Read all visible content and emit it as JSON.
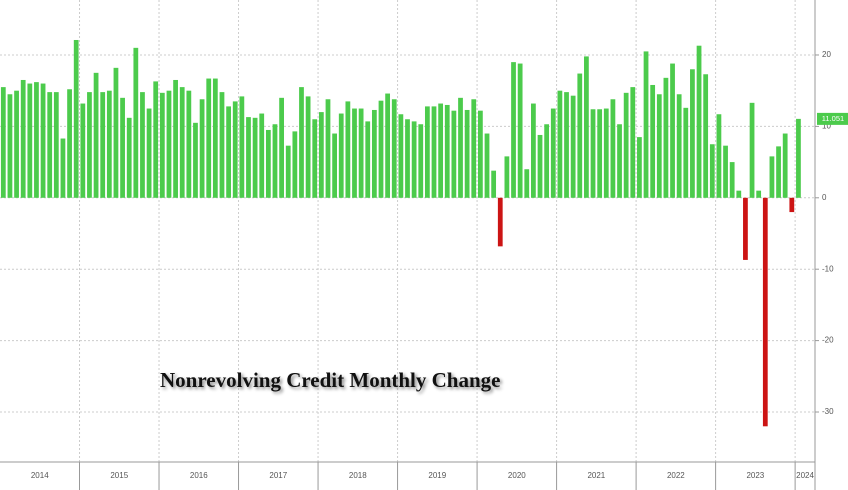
{
  "chart_data": {
    "type": "bar",
    "title": "Nonrevolving Credit Monthly Change",
    "categories": [
      "2014",
      null,
      null,
      null,
      null,
      null,
      null,
      null,
      null,
      null,
      null,
      null,
      "2015",
      null,
      null,
      null,
      null,
      null,
      null,
      null,
      null,
      null,
      null,
      null,
      "2016",
      null,
      null,
      null,
      null,
      null,
      null,
      null,
      null,
      null,
      null,
      null,
      "2017",
      null,
      null,
      null,
      null,
      null,
      null,
      null,
      null,
      null,
      null,
      null,
      "2018",
      null,
      null,
      null,
      null,
      null,
      null,
      null,
      null,
      null,
      null,
      null,
      "2019",
      null,
      null,
      null,
      null,
      null,
      null,
      null,
      null,
      null,
      null,
      null,
      "2020",
      null,
      null,
      null,
      null,
      null,
      null,
      null,
      null,
      null,
      null,
      null,
      "2021",
      null,
      null,
      null,
      null,
      null,
      null,
      null,
      null,
      null,
      null,
      null,
      "2022",
      null,
      null,
      null,
      null,
      null,
      null,
      null,
      null,
      null,
      null,
      null,
      "2023",
      null,
      null,
      null,
      null,
      null,
      null,
      null,
      null,
      null,
      null,
      null,
      "2024"
    ],
    "values": [
      15.5,
      14.5,
      15,
      16.5,
      16,
      16.2,
      16,
      14.8,
      14.8,
      8.3,
      15.2,
      22.1,
      13.2,
      14.8,
      17.5,
      14.8,
      15,
      18.2,
      14,
      11.2,
      21,
      14.8,
      12.5,
      16.3,
      14.7,
      15,
      16.5,
      15.5,
      15,
      10.5,
      13.8,
      16.7,
      16.7,
      14.8,
      12.8,
      13.5,
      14.2,
      11.3,
      11.2,
      11.8,
      9.5,
      10.3,
      14,
      7.3,
      9.3,
      15.5,
      14.2,
      11,
      12,
      13.8,
      9,
      11.8,
      13.5,
      12.5,
      12.5,
      10.7,
      12.3,
      13.6,
      14.6,
      13.8,
      11.7,
      11,
      10.7,
      10.3,
      12.8,
      12.8,
      13.2,
      13,
      12.2,
      14,
      12.3,
      13.8,
      12.2,
      9,
      3.8,
      -6.8,
      5.8,
      19,
      18.8,
      4,
      13.2,
      8.8,
      10.3,
      12.5,
      15,
      14.8,
      14.3,
      17.4,
      19.8,
      12.4,
      12.4,
      12.5,
      13.8,
      10.3,
      14.7,
      15.5,
      8.5,
      20.5,
      15.8,
      14.5,
      16.8,
      18.8,
      14.5,
      12.6,
      18,
      21.3,
      17.3,
      7.5,
      11.7,
      7.3,
      5,
      1,
      -8.7,
      13.3,
      1,
      -32,
      5.8,
      7.2,
      9,
      -2,
      11.051
    ],
    "value_labels": [
      null,
      null,
      null,
      null,
      null,
      null,
      null,
      null,
      null,
      null,
      null,
      null,
      null,
      null,
      null,
      null,
      null,
      null,
      null,
      null,
      null,
      null,
      null,
      null,
      null,
      null,
      null,
      null,
      null,
      null,
      null,
      null,
      null,
      null,
      null,
      null,
      null,
      null,
      null,
      null,
      null,
      null,
      null,
      null,
      null,
      null,
      null,
      null,
      null,
      null,
      null,
      null,
      null,
      null,
      null,
      null,
      null,
      null,
      null,
      null,
      null,
      null,
      null,
      null,
      null,
      null,
      null,
      null,
      null,
      null,
      null,
      null,
      null,
      null,
      null,
      null,
      null,
      null,
      null,
      null,
      null,
      null,
      null,
      null,
      null,
      null,
      null,
      null,
      null,
      null,
      null,
      null,
      null,
      null,
      null,
      null,
      null,
      null,
      null,
      null,
      null,
      null,
      null,
      null,
      null,
      null,
      null,
      null,
      null,
      null,
      null,
      null,
      null,
      null,
      null,
      null,
      null,
      null,
      null,
      null,
      "11.051"
    ],
    "color": "#4ccb4c",
    "negative_color": "#cc1414",
    "ylim": [
      -37,
      27.7
    ],
    "yticks": [
      -30,
      -20,
      -10,
      0,
      10,
      20
    ],
    "grid": true
  }
}
